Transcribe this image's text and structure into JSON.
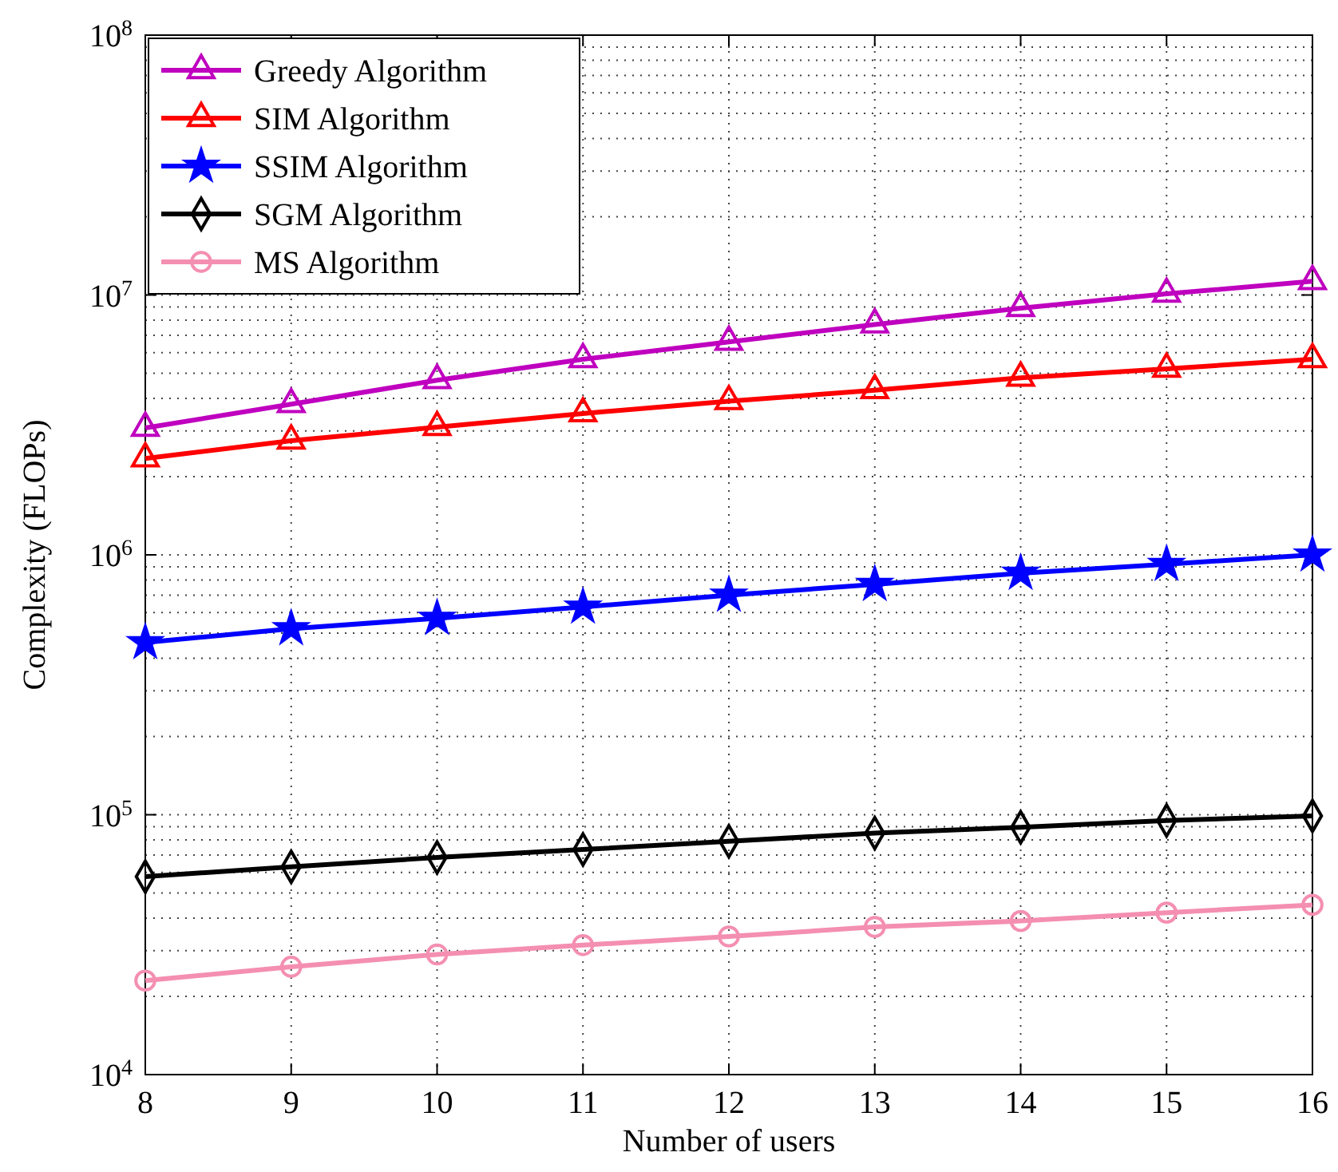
{
  "chart_data": {
    "type": "line",
    "xlabel": "Number of users",
    "ylabel": "Complexity (FLOPs)",
    "x": [
      8,
      9,
      10,
      11,
      12,
      13,
      14,
      15,
      16
    ],
    "xlim": [
      8,
      16
    ],
    "xticks": [
      8,
      9,
      10,
      11,
      12,
      13,
      14,
      15,
      16
    ],
    "ylim": [
      10000,
      100000000
    ],
    "log": "y",
    "yticks": [
      {
        "value": 10000,
        "label": "10$^{4}$"
      },
      {
        "value": 100000,
        "label": "10$^{5}$"
      },
      {
        "value": 1000000,
        "label": "10$^{6}$"
      },
      {
        "value": 10000000,
        "label": "10$^{7}$"
      },
      {
        "value": 100000000,
        "label": "10$^{8}$"
      }
    ],
    "grid": true,
    "legend": "top left",
    "line_style": "solid",
    "series": [
      {
        "name": "Greedy Algorithm",
        "color": "#bf00bf",
        "marker": "triangle",
        "values": [
          3080000,
          3800000,
          4700000,
          5660000,
          6600000,
          7700000,
          8900000,
          10100000,
          11300000
        ]
      },
      {
        "name": "SIM Algorithm",
        "color": "#ff0000",
        "marker": "triangle",
        "values": [
          2350000,
          2750000,
          3100000,
          3500000,
          3900000,
          4300000,
          4800000,
          5200000,
          5660000
        ]
      },
      {
        "name": "SSIM Algorithm",
        "color": "#0000ff",
        "marker": "star",
        "values": [
          460000,
          520000,
          570000,
          630000,
          700000,
          770000,
          850000,
          920000,
          1000000
        ]
      },
      {
        "name": "SGM Algorithm",
        "color": "#000000",
        "marker": "diamond",
        "values": [
          57800,
          63000,
          68500,
          73500,
          79000,
          85000,
          89500,
          95000,
          99000
        ]
      },
      {
        "name": "MS Algorithm",
        "color": "#f48fb1",
        "marker": "circle",
        "values": [
          23000,
          26000,
          29000,
          31500,
          34000,
          37000,
          39000,
          42000,
          45000
        ]
      }
    ]
  }
}
